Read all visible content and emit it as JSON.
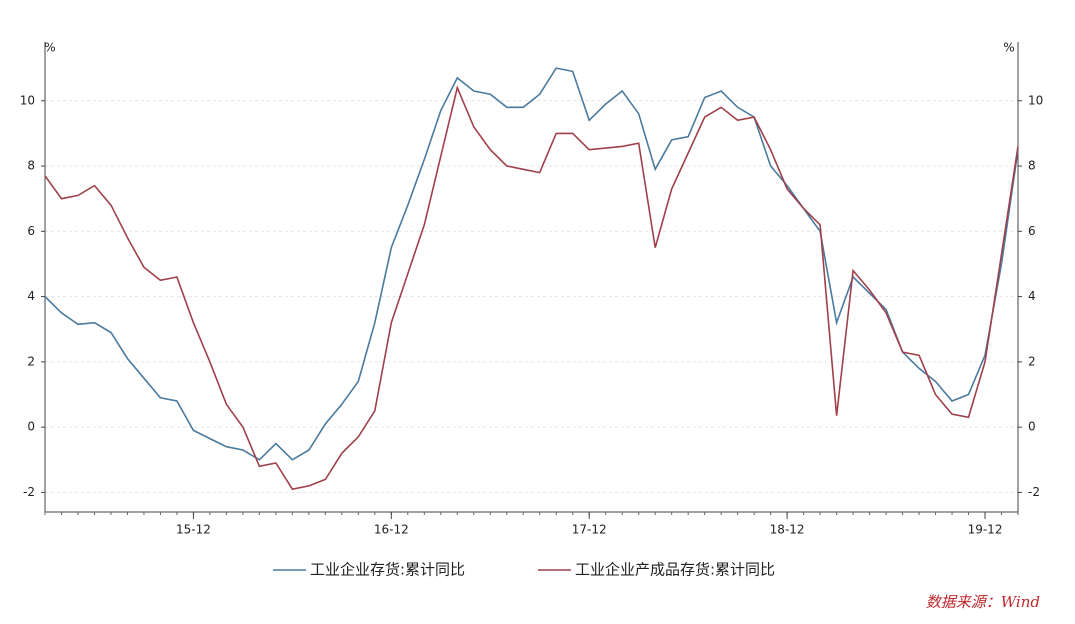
{
  "chart_data": {
    "type": "line",
    "y_unit": "%",
    "y2_unit": "%",
    "categories": [
      null,
      null,
      null,
      null,
      null,
      null,
      null,
      null,
      null,
      "15-12",
      null,
      null,
      null,
      null,
      null,
      null,
      null,
      null,
      null,
      null,
      null,
      "16-12",
      null,
      null,
      null,
      null,
      null,
      null,
      null,
      null,
      null,
      null,
      null,
      "17-12",
      null,
      null,
      null,
      null,
      null,
      null,
      null,
      null,
      null,
      null,
      null,
      "18-12",
      null,
      null,
      null,
      null,
      null,
      null,
      null,
      null,
      null,
      null,
      null,
      "19-12",
      null,
      null
    ],
    "series": [
      {
        "name": "工业企业存货:累计同比",
        "color": "#4a7a9e",
        "values": [
          4.0,
          3.5,
          3.15,
          3.2,
          2.9,
          2.1,
          1.5,
          0.9,
          0.8,
          -0.1,
          -0.35,
          -0.6,
          -0.7,
          -1.0,
          -0.5,
          -1.0,
          -0.7,
          0.1,
          0.7,
          1.4,
          3.2,
          5.5,
          6.8,
          8.2,
          9.7,
          10.7,
          10.3,
          10.2,
          9.8,
          9.8,
          10.2,
          11.0,
          10.9,
          9.4,
          9.9,
          10.3,
          9.6,
          7.9,
          8.8,
          8.9,
          10.1,
          10.3,
          9.8,
          9.5,
          8.0,
          7.4,
          6.7,
          6.0,
          3.2,
          4.6,
          4.1,
          3.6,
          2.3,
          1.8,
          1.4,
          0.8,
          1.0,
          2.2,
          5.0,
          8.5
        ]
      },
      {
        "name": "工业企业产成品存货:累计同比",
        "color": "#a0404a",
        "values": [
          7.7,
          7.0,
          7.1,
          7.4,
          6.8,
          5.8,
          4.9,
          4.5,
          4.6,
          3.2,
          2.0,
          0.7,
          0.0,
          -1.2,
          -1.1,
          -1.9,
          -1.8,
          -1.6,
          -0.8,
          -0.3,
          0.5,
          3.2,
          4.7,
          6.2,
          8.3,
          10.4,
          9.2,
          8.5,
          8.0,
          7.9,
          7.8,
          9.0,
          9.0,
          8.5,
          8.55,
          8.6,
          8.7,
          5.5,
          7.3,
          8.4,
          9.5,
          9.8,
          9.4,
          9.5,
          8.5,
          7.3,
          6.7,
          6.2,
          0.35,
          4.8,
          4.2,
          3.5,
          2.3,
          2.2,
          1.0,
          0.4,
          0.3,
          2.0,
          5.3,
          8.6
        ]
      }
    ],
    "ylim": [
      -2.6,
      11.8
    ],
    "yticks": [
      -2,
      0,
      2,
      4,
      6,
      8,
      10
    ],
    "y2lim": [
      -2.6,
      11.8
    ],
    "y2ticks": [
      -2,
      0,
      2,
      4,
      6,
      8,
      10
    ],
    "grid": true,
    "legend": "bottom",
    "source": "数据来源：Wind"
  }
}
